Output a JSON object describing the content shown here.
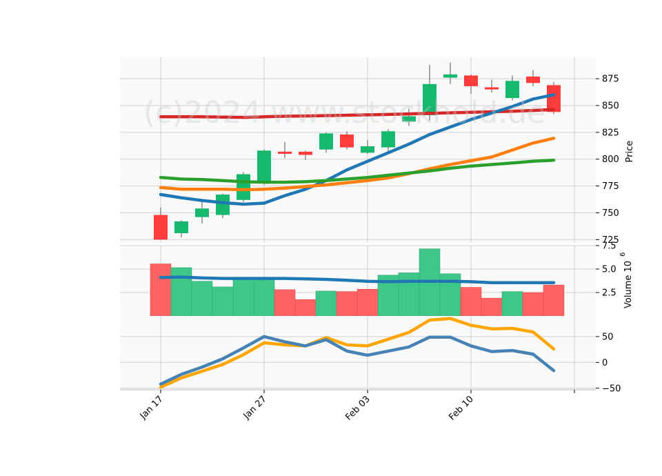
{
  "watermark": "(c)2024 www.stockhold.de",
  "colors": {
    "up": "#16b86e",
    "down": "#ff3b3b",
    "vol_up": "#3fc78a",
    "vol_down": "#ff6262",
    "sma_long": "#d62728",
    "ma_blue": "#1f77b4",
    "ma_orange": "#ff7f0e",
    "ma_green": "#2ca02c",
    "vol_ma": "#1f77b4",
    "osc_blue": "#4682b4",
    "osc_orange": "#ffa500",
    "panel_bg": "#f9f9f9",
    "grid": "#d0d0d0"
  },
  "chart_data": [
    {
      "type": "candlestick",
      "ylabel": "Price",
      "ylim": [
        722,
        895
      ],
      "yticks": [
        "725",
        "750",
        "775",
        "800",
        "825",
        "850",
        "875"
      ],
      "x_labels": [
        "Jan 17",
        "Jan 27",
        "Feb 03",
        "Feb 10"
      ],
      "x_label_index": [
        0,
        5,
        10,
        15
      ],
      "candles": [
        {
          "open": 748,
          "high": 755,
          "low": 725,
          "close": 725
        },
        {
          "open": 731,
          "high": 743,
          "low": 727,
          "close": 742
        },
        {
          "open": 746,
          "high": 761,
          "low": 740,
          "close": 754
        },
        {
          "open": 748,
          "high": 768,
          "low": 745,
          "close": 767
        },
        {
          "open": 762,
          "high": 788,
          "low": 760,
          "close": 786
        },
        {
          "open": 778,
          "high": 809,
          "low": 776,
          "close": 808
        },
        {
          "open": 807,
          "high": 816,
          "low": 801,
          "close": 805
        },
        {
          "open": 807,
          "high": 808,
          "low": 799,
          "close": 804
        },
        {
          "open": 809,
          "high": 825,
          "low": 806,
          "close": 824
        },
        {
          "open": 823,
          "high": 826,
          "low": 809,
          "close": 811
        },
        {
          "open": 806,
          "high": 818,
          "low": 805,
          "close": 812
        },
        {
          "open": 811,
          "high": 828,
          "low": 807,
          "close": 826
        },
        {
          "open": 835,
          "high": 847,
          "low": 831,
          "close": 840
        },
        {
          "open": 841,
          "high": 888,
          "low": 836,
          "close": 870
        },
        {
          "open": 876,
          "high": 890,
          "low": 870,
          "close": 879
        },
        {
          "open": 878,
          "high": 879,
          "low": 861,
          "close": 868
        },
        {
          "open": 867,
          "high": 874,
          "low": 862,
          "close": 865
        },
        {
          "open": 857,
          "high": 878,
          "low": 855,
          "close": 873
        },
        {
          "open": 877,
          "high": 883,
          "low": 868,
          "close": 871
        },
        {
          "open": 869,
          "high": 872,
          "low": 842,
          "close": 844
        }
      ],
      "series": [
        {
          "color_key": "sma_long",
          "values": [
            839.5,
            839.5,
            839.5,
            839.2,
            839.0,
            839.5,
            840.0,
            840.3,
            840.6,
            841.0,
            841.3,
            841.7,
            842.2,
            842.7,
            843.2,
            843.7,
            844.2,
            844.7,
            845.4,
            846.3
          ]
        },
        {
          "color_key": "ma_blue",
          "values": [
            767,
            764,
            761.5,
            759.5,
            758,
            759,
            766,
            772,
            780,
            790,
            798,
            806,
            814,
            823,
            830,
            837,
            843,
            849,
            856,
            860
          ]
        },
        {
          "color_key": "ma_orange",
          "values": [
            773.5,
            772,
            772,
            772,
            771.5,
            772,
            773,
            774.5,
            776,
            778,
            780,
            782.5,
            786.5,
            791,
            795,
            798.5,
            802,
            808.5,
            815,
            819.5
          ]
        },
        {
          "color_key": "ma_green",
          "values": [
            783,
            781.5,
            781,
            780,
            779,
            778.5,
            778.5,
            779,
            780,
            781.5,
            783,
            785,
            787,
            789,
            791.5,
            793.5,
            795,
            796.5,
            798,
            799
          ]
        }
      ]
    },
    {
      "type": "bar",
      "ylabel": "Volume  10",
      "ylabel_exponent": "6",
      "ylim": [
        0,
        7.5
      ],
      "yticks": [
        "2.5",
        "5.0",
        "7.5"
      ],
      "values": [
        5.55,
        5.15,
        3.7,
        3.1,
        4.1,
        4.0,
        2.8,
        1.75,
        2.65,
        2.6,
        2.85,
        4.35,
        4.6,
        7.15,
        4.5,
        3.05,
        1.9,
        2.6,
        2.5,
        3.3
      ],
      "up_days": [
        false,
        true,
        true,
        true,
        true,
        true,
        false,
        false,
        true,
        false,
        false,
        true,
        true,
        true,
        true,
        false,
        false,
        true,
        false,
        false
      ],
      "series": [
        {
          "color_key": "vol_ma",
          "values": [
            4.1,
            4.15,
            4.05,
            4.0,
            4.0,
            4.0,
            4.0,
            3.95,
            3.9,
            3.8,
            3.7,
            3.65,
            3.7,
            3.7,
            3.7,
            3.65,
            3.55,
            3.55,
            3.55,
            3.55
          ]
        }
      ]
    },
    {
      "type": "line",
      "ylim": [
        -53,
        90
      ],
      "yticks": [
        "−50",
        "0",
        "50"
      ],
      "ytick_values": [
        -50,
        0,
        50
      ],
      "series": [
        {
          "color_key": "osc_orange",
          "values": [
            -48,
            -30,
            -17,
            -4,
            15,
            38,
            34,
            32,
            48,
            34,
            32,
            45,
            58,
            82,
            85,
            72,
            65,
            66,
            59,
            26
          ]
        },
        {
          "color_key": "osc_blue",
          "values": [
            -42,
            -23,
            -9,
            7,
            28,
            50,
            40,
            32,
            44,
            22,
            14,
            22,
            30,
            49,
            49,
            32,
            21,
            23,
            16,
            -16
          ]
        }
      ]
    }
  ]
}
